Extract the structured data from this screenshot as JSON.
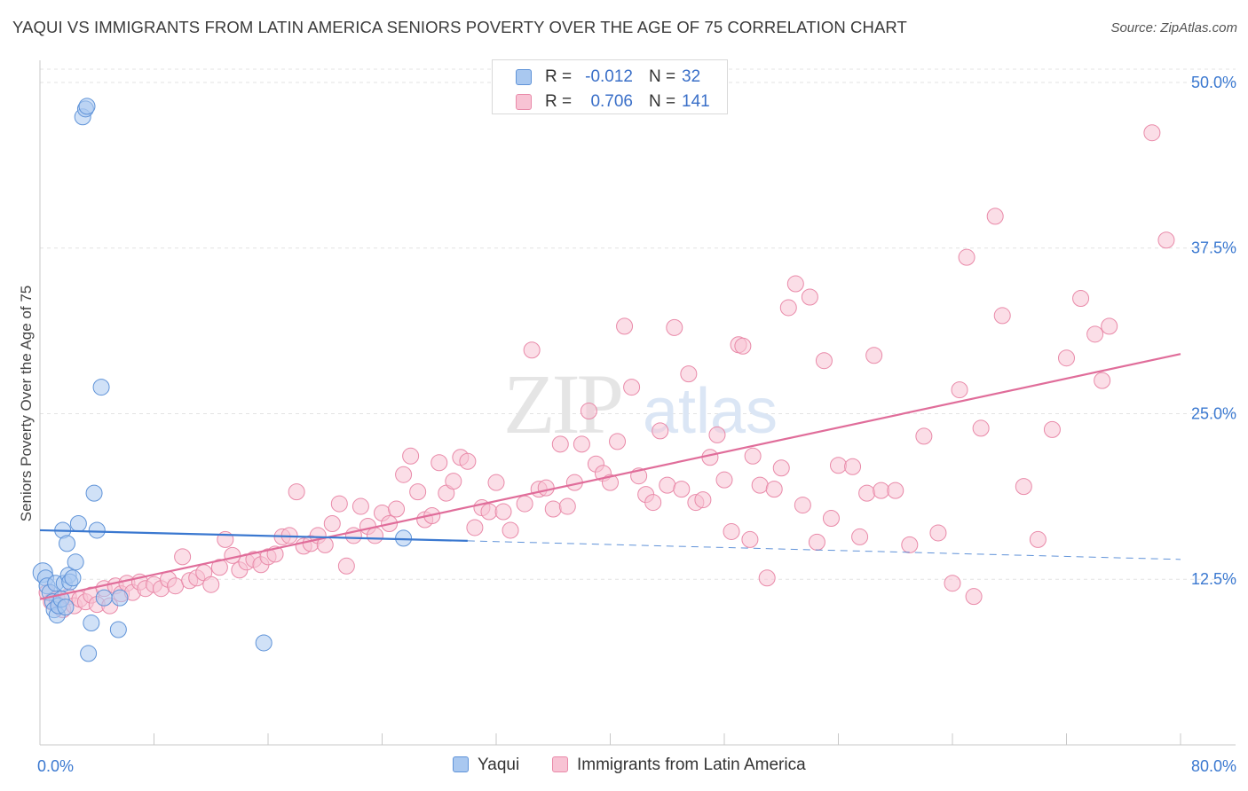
{
  "title": "YAQUI VS IMMIGRANTS FROM LATIN AMERICA SENIORS POVERTY OVER THE AGE OF 75 CORRELATION CHART",
  "source": "Source: ZipAtlas.com",
  "watermark": {
    "zip": "ZIP",
    "atlas": "atlas"
  },
  "legend": {
    "rows": [
      {
        "r_label": "R =",
        "r_value": "-0.012",
        "n_label": "N =",
        "n_value": "32",
        "color": "#a9c8f0",
        "border": "#5f93d8"
      },
      {
        "r_label": "R =",
        "r_value": "0.706",
        "n_label": "N =",
        "n_value": "141",
        "color": "#f8c3d4",
        "border": "#e98aa9"
      }
    ]
  },
  "bottom_legend": {
    "yaqui": "Yaqui",
    "latin": "Immigrants from Latin America"
  },
  "chart_data": {
    "type": "scatter",
    "title": "YAQUI VS IMMIGRANTS FROM LATIN AMERICA SENIORS POVERTY OVER THE AGE OF 75 CORRELATION CHART",
    "xlabel": "",
    "ylabel": "Seniors Poverty Over the Age of 75",
    "xlim": [
      0,
      80
    ],
    "ylim": [
      0,
      51
    ],
    "x_tick_labels": [
      "0.0%",
      "80.0%"
    ],
    "y_ticks": [
      12.5,
      25,
      37.5,
      50
    ],
    "y_tick_labels": [
      "12.5%",
      "25.0%",
      "37.5%",
      "50.0%"
    ],
    "grid": true,
    "legend_position": "top-center",
    "series": [
      {
        "name": "Yaqui",
        "color": "#a9c8f0",
        "stroke": "#5f93d8",
        "trend": {
          "x0": 0,
          "y0": 16.2,
          "x1": 30,
          "y1": 15.4,
          "dash_to_x": 80,
          "dash_to_y": 14.0,
          "color": "#3a78d0"
        },
        "points": [
          [
            0.2,
            13.0
          ],
          [
            0.4,
            12.6
          ],
          [
            0.5,
            12.0
          ],
          [
            0.7,
            11.5
          ],
          [
            0.9,
            10.8
          ],
          [
            1.0,
            10.2
          ],
          [
            1.1,
            12.2
          ],
          [
            1.2,
            9.8
          ],
          [
            1.3,
            10.5
          ],
          [
            1.5,
            11.0
          ],
          [
            1.6,
            16.2
          ],
          [
            1.7,
            12.2
          ],
          [
            1.8,
            10.4
          ],
          [
            1.9,
            15.2
          ],
          [
            2.0,
            12.8
          ],
          [
            2.1,
            12.3
          ],
          [
            2.3,
            12.6
          ],
          [
            2.5,
            13.8
          ],
          [
            2.7,
            16.7
          ],
          [
            3.0,
            47.4
          ],
          [
            3.2,
            48.0
          ],
          [
            3.3,
            48.2
          ],
          [
            3.4,
            6.9
          ],
          [
            3.6,
            9.2
          ],
          [
            3.8,
            19.0
          ],
          [
            4.0,
            16.2
          ],
          [
            4.3,
            27.0
          ],
          [
            4.5,
            11.1
          ],
          [
            5.5,
            8.7
          ],
          [
            5.6,
            11.1
          ],
          [
            15.7,
            7.7
          ],
          [
            25.5,
            15.6
          ]
        ]
      },
      {
        "name": "Immigrants from Latin America",
        "color": "#f8c3d4",
        "stroke": "#e98aa9",
        "trend": {
          "x0": 0,
          "y0": 11.0,
          "x1": 80,
          "y1": 29.5,
          "color": "#e06d9a"
        },
        "points": [
          [
            0.5,
            11.5
          ],
          [
            0.8,
            10.8
          ],
          [
            1.2,
            11.0
          ],
          [
            1.6,
            10.2
          ],
          [
            2.0,
            11.2
          ],
          [
            2.4,
            10.5
          ],
          [
            2.8,
            11.0
          ],
          [
            3.2,
            10.8
          ],
          [
            3.6,
            11.3
          ],
          [
            4.0,
            10.6
          ],
          [
            4.5,
            11.8
          ],
          [
            4.9,
            10.5
          ],
          [
            5.3,
            12.0
          ],
          [
            5.7,
            11.4
          ],
          [
            6.1,
            12.2
          ],
          [
            6.5,
            11.5
          ],
          [
            7.0,
            12.3
          ],
          [
            7.4,
            11.8
          ],
          [
            8.0,
            12.1
          ],
          [
            8.5,
            11.8
          ],
          [
            9.0,
            12.5
          ],
          [
            9.5,
            12.0
          ],
          [
            10.0,
            14.2
          ],
          [
            10.5,
            12.4
          ],
          [
            11.0,
            12.6
          ],
          [
            11.5,
            13.0
          ],
          [
            12.0,
            12.1
          ],
          [
            12.6,
            13.4
          ],
          [
            13.0,
            15.5
          ],
          [
            13.5,
            14.3
          ],
          [
            14.0,
            13.2
          ],
          [
            14.5,
            13.8
          ],
          [
            15.0,
            14.0
          ],
          [
            15.5,
            13.6
          ],
          [
            16.0,
            14.2
          ],
          [
            16.5,
            14.4
          ],
          [
            17.0,
            15.7
          ],
          [
            17.5,
            15.8
          ],
          [
            18.0,
            19.1
          ],
          [
            18.5,
            15.0
          ],
          [
            19.0,
            15.2
          ],
          [
            19.5,
            15.8
          ],
          [
            20.0,
            15.1
          ],
          [
            20.5,
            16.7
          ],
          [
            21.0,
            18.2
          ],
          [
            21.5,
            13.5
          ],
          [
            22.0,
            15.8
          ],
          [
            22.5,
            18.0
          ],
          [
            23.0,
            16.5
          ],
          [
            23.5,
            15.8
          ],
          [
            24.0,
            17.5
          ],
          [
            24.5,
            16.7
          ],
          [
            25.0,
            17.8
          ],
          [
            25.5,
            20.4
          ],
          [
            26.0,
            21.8
          ],
          [
            26.5,
            19.1
          ],
          [
            27.0,
            17.0
          ],
          [
            27.5,
            17.3
          ],
          [
            28.0,
            21.3
          ],
          [
            28.5,
            19.0
          ],
          [
            29.0,
            19.9
          ],
          [
            29.5,
            21.7
          ],
          [
            30.0,
            21.4
          ],
          [
            30.5,
            16.4
          ],
          [
            31.0,
            17.9
          ],
          [
            31.5,
            17.6
          ],
          [
            32.0,
            19.8
          ],
          [
            32.5,
            17.6
          ],
          [
            33.0,
            16.2
          ],
          [
            34.0,
            18.2
          ],
          [
            34.5,
            29.8
          ],
          [
            35.0,
            19.3
          ],
          [
            35.5,
            19.4
          ],
          [
            36.0,
            17.8
          ],
          [
            36.5,
            22.7
          ],
          [
            37.0,
            18.0
          ],
          [
            37.5,
            19.8
          ],
          [
            38.0,
            22.7
          ],
          [
            38.5,
            25.2
          ],
          [
            39.0,
            21.2
          ],
          [
            39.5,
            20.5
          ],
          [
            40.0,
            19.8
          ],
          [
            40.5,
            22.9
          ],
          [
            41.0,
            31.6
          ],
          [
            41.5,
            27.0
          ],
          [
            42.0,
            20.3
          ],
          [
            42.5,
            18.9
          ],
          [
            43.0,
            18.3
          ],
          [
            43.5,
            23.7
          ],
          [
            44.0,
            19.6
          ],
          [
            44.5,
            31.5
          ],
          [
            45.0,
            19.3
          ],
          [
            45.5,
            28.0
          ],
          [
            46.0,
            18.3
          ],
          [
            46.5,
            18.5
          ],
          [
            47.0,
            21.7
          ],
          [
            47.5,
            23.4
          ],
          [
            48.0,
            20.0
          ],
          [
            48.5,
            16.1
          ],
          [
            49.0,
            30.2
          ],
          [
            49.3,
            30.1
          ],
          [
            49.8,
            15.5
          ],
          [
            50.0,
            21.8
          ],
          [
            50.5,
            19.6
          ],
          [
            51.0,
            12.6
          ],
          [
            51.5,
            19.3
          ],
          [
            52.0,
            20.9
          ],
          [
            52.5,
            33.0
          ],
          [
            53.0,
            34.8
          ],
          [
            53.5,
            18.1
          ],
          [
            54.0,
            33.8
          ],
          [
            54.5,
            15.3
          ],
          [
            55.0,
            29.0
          ],
          [
            55.5,
            17.1
          ],
          [
            56.0,
            21.1
          ],
          [
            57.0,
            21.0
          ],
          [
            57.5,
            15.7
          ],
          [
            58.0,
            19.0
          ],
          [
            58.5,
            29.4
          ],
          [
            59.0,
            19.2
          ],
          [
            60.0,
            19.2
          ],
          [
            61.0,
            15.1
          ],
          [
            62.0,
            23.3
          ],
          [
            63.0,
            16.0
          ],
          [
            64.0,
            12.2
          ],
          [
            64.5,
            26.8
          ],
          [
            65.0,
            36.8
          ],
          [
            65.5,
            11.2
          ],
          [
            66.0,
            23.9
          ],
          [
            67.0,
            39.9
          ],
          [
            67.5,
            32.4
          ],
          [
            69.0,
            19.5
          ],
          [
            70.0,
            15.5
          ],
          [
            71.0,
            23.8
          ],
          [
            72.0,
            29.2
          ],
          [
            73.0,
            33.7
          ],
          [
            74.0,
            31.0
          ],
          [
            74.5,
            27.5
          ],
          [
            75.0,
            31.6
          ],
          [
            78.0,
            46.2
          ],
          [
            79.0,
            38.1
          ]
        ]
      }
    ]
  }
}
